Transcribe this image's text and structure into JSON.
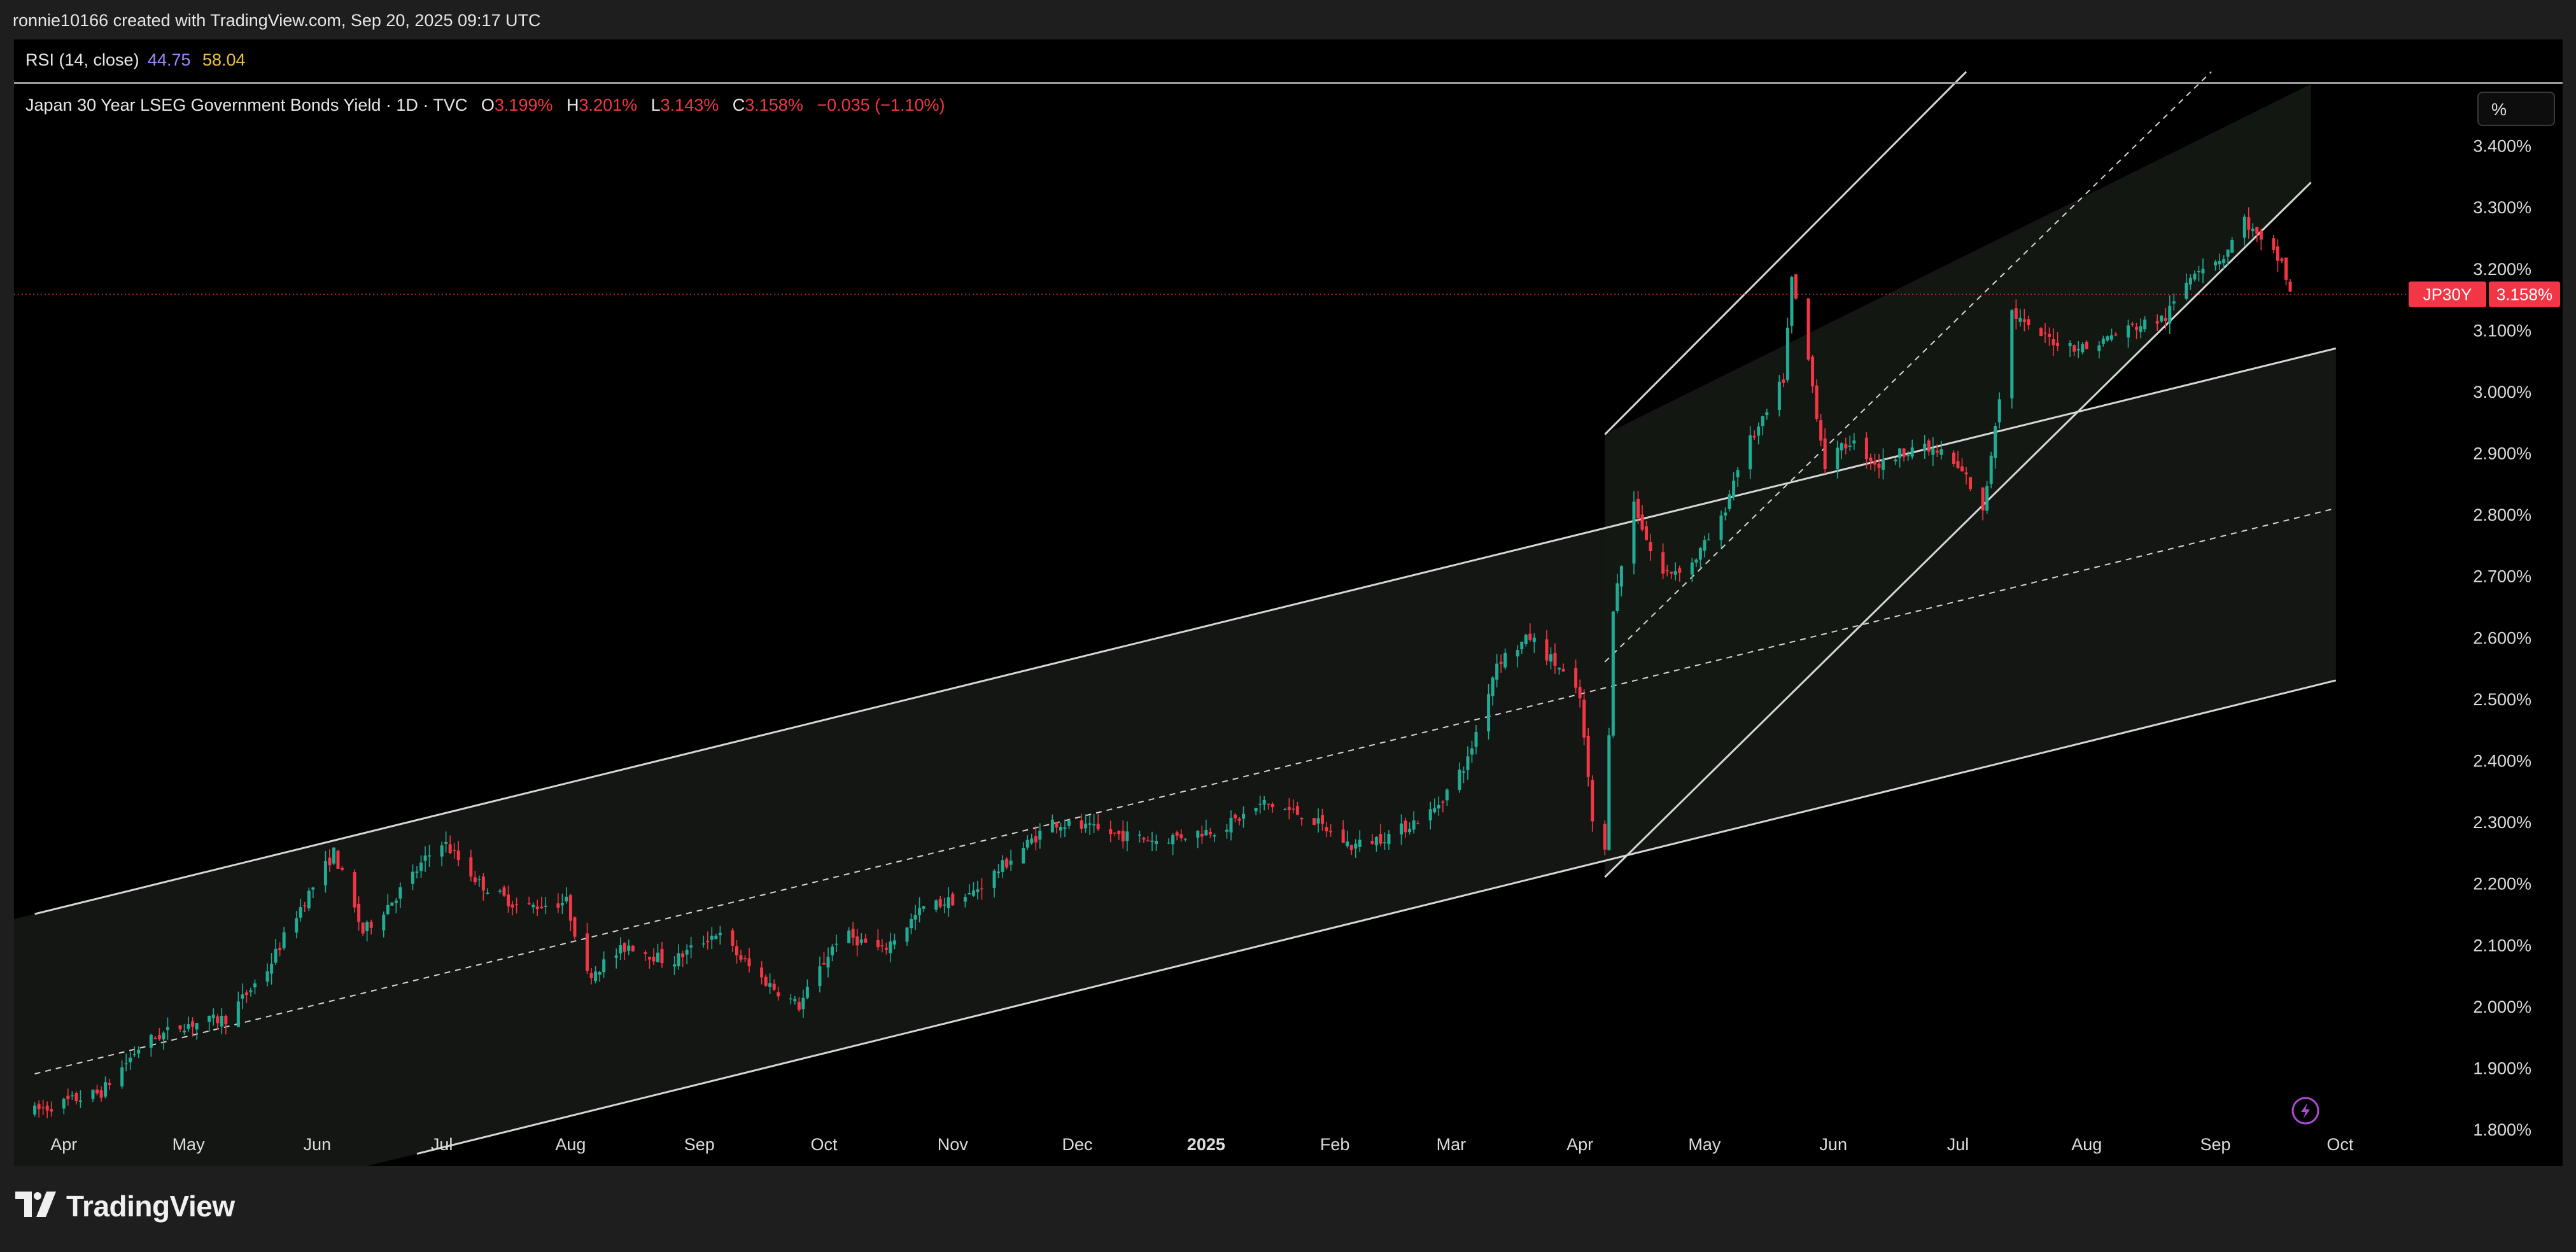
{
  "header": {
    "attribution": "ronnie10166 created with TradingView.com, Sep 20, 2025 09:17 UTC"
  },
  "indicator": {
    "name": "RSI (14, close)",
    "value1": "44.75",
    "value2": "58.04"
  },
  "legend": {
    "symbol_title": "Japan 30 Year LSEG Government Bonds Yield · 1D · TVC",
    "o_label": "O",
    "o_value": "3.199%",
    "h_label": "H",
    "h_value": "3.201%",
    "l_label": "L",
    "l_value": "3.143%",
    "c_label": "C",
    "c_value": "3.158%",
    "change": "−0.035 (−1.10%)"
  },
  "scale_button": {
    "label": "%"
  },
  "price_tag": {
    "symbol": "JP30Y",
    "price": "3.158%"
  },
  "branding": {
    "logo_text": "TradingView",
    "logo_icon": "tradingview-logo-icon",
    "flash_icon": "lightning-icon"
  },
  "colors": {
    "up": "#22ab94",
    "down": "#f23645",
    "background": "#000000",
    "channel_line": "#d6d6d6",
    "rsi_value1": "#9b8cff",
    "rsi_value2": "#f0c33c"
  },
  "chart_data": {
    "type": "candlestick",
    "x_axis": {
      "labels": [
        "Apr",
        "May",
        "Jun",
        "Jul",
        "Aug",
        "Sep",
        "Oct",
        "Nov",
        "Dec",
        "2025",
        "Feb",
        "Mar",
        "Apr",
        "May",
        "Jun",
        "Jul",
        "Aug",
        "Sep",
        "Oct"
      ],
      "dates": [
        "2024-04-01",
        "2024-05-01",
        "2024-06-01",
        "2024-07-01",
        "2024-08-01",
        "2024-09-01",
        "2024-10-01",
        "2024-11-01",
        "2024-12-01",
        "2025-01-01",
        "2025-02-01",
        "2025-03-01",
        "2025-04-01",
        "2025-05-01",
        "2025-06-01",
        "2025-07-01",
        "2025-08-01",
        "2025-09-01",
        "2025-10-01"
      ]
    },
    "y_axis": {
      "ticks": [
        "1.800%",
        "1.900%",
        "2.000%",
        "2.100%",
        "2.200%",
        "2.300%",
        "2.400%",
        "2.500%",
        "2.600%",
        "2.700%",
        "2.800%",
        "2.900%",
        "3.000%",
        "3.100%",
        "3.200%",
        "3.300%",
        "3.400%"
      ],
      "tick_values": [
        1.8,
        1.9,
        2.0,
        2.1,
        2.2,
        2.3,
        2.4,
        2.5,
        2.6,
        2.7,
        2.8,
        2.9,
        3.0,
        3.1,
        3.2,
        3.3,
        3.4
      ],
      "range": [
        1.74,
        3.5
      ],
      "unit": "%"
    },
    "last_price": 3.158,
    "series_path": [
      [
        "2024-03-25",
        1.83
      ],
      [
        "2024-04-10",
        1.86
      ],
      [
        "2024-04-20",
        1.94
      ],
      [
        "2024-04-30",
        1.97
      ],
      [
        "2024-05-10",
        1.98
      ],
      [
        "2024-05-20",
        2.06
      ],
      [
        "2024-05-27",
        2.15
      ],
      [
        "2024-06-05",
        2.25
      ],
      [
        "2024-06-12",
        2.12
      ],
      [
        "2024-06-20",
        2.18
      ],
      [
        "2024-07-01",
        2.27
      ],
      [
        "2024-07-10",
        2.2
      ],
      [
        "2024-07-20",
        2.16
      ],
      [
        "2024-07-31",
        2.17
      ],
      [
        "2024-08-05",
        2.05
      ],
      [
        "2024-08-15",
        2.1
      ],
      [
        "2024-08-25",
        2.07
      ],
      [
        "2024-09-05",
        2.12
      ],
      [
        "2024-09-15",
        2.05
      ],
      [
        "2024-09-25",
        2.0
      ],
      [
        "2024-10-05",
        2.12
      ],
      [
        "2024-10-15",
        2.09
      ],
      [
        "2024-10-25",
        2.16
      ],
      [
        "2024-11-05",
        2.18
      ],
      [
        "2024-11-15",
        2.24
      ],
      [
        "2024-11-25",
        2.3
      ],
      [
        "2024-12-10",
        2.28
      ],
      [
        "2024-12-20",
        2.27
      ],
      [
        "2025-01-05",
        2.29
      ],
      [
        "2025-01-15",
        2.33
      ],
      [
        "2025-01-25",
        2.31
      ],
      [
        "2025-02-05",
        2.26
      ],
      [
        "2025-02-15",
        2.28
      ],
      [
        "2025-02-25",
        2.32
      ],
      [
        "2025-03-05",
        2.4
      ],
      [
        "2025-03-12",
        2.56
      ],
      [
        "2025-03-20",
        2.6
      ],
      [
        "2025-03-27",
        2.55
      ],
      [
        "2025-04-01",
        2.5
      ],
      [
        "2025-04-04",
        2.3
      ],
      [
        "2025-04-07",
        2.25
      ],
      [
        "2025-04-09",
        2.65
      ],
      [
        "2025-04-14",
        2.82
      ],
      [
        "2025-04-20",
        2.7
      ],
      [
        "2025-04-28",
        2.72
      ],
      [
        "2025-05-05",
        2.79
      ],
      [
        "2025-05-10",
        2.9
      ],
      [
        "2025-05-15",
        2.95
      ],
      [
        "2025-05-20",
        3.02
      ],
      [
        "2025-05-22",
        3.18
      ],
      [
        "2025-05-26",
        3.05
      ],
      [
        "2025-05-30",
        2.88
      ],
      [
        "2025-06-05",
        2.92
      ],
      [
        "2025-06-12",
        2.88
      ],
      [
        "2025-06-20",
        2.91
      ],
      [
        "2025-06-27",
        2.9
      ],
      [
        "2025-07-03",
        2.86
      ],
      [
        "2025-07-07",
        2.8
      ],
      [
        "2025-07-10",
        2.95
      ],
      [
        "2025-07-14",
        3.13
      ],
      [
        "2025-07-18",
        3.1
      ],
      [
        "2025-07-25",
        3.08
      ],
      [
        "2025-08-01",
        3.07
      ],
      [
        "2025-08-10",
        3.1
      ],
      [
        "2025-08-20",
        3.12
      ],
      [
        "2025-08-27",
        3.2
      ],
      [
        "2025-09-03",
        3.22
      ],
      [
        "2025-09-08",
        3.28
      ],
      [
        "2025-09-12",
        3.24
      ],
      [
        "2025-09-17",
        3.21
      ],
      [
        "2025-09-19",
        3.158
      ]
    ],
    "channels": [
      {
        "name": "",
        "style": "solid",
        "points": [
          [
            "2024-03-25",
            2.15
          ],
          [
            "2025-09-30",
            3.07
          ]
        ]
      },
      {
        "name": "",
        "style": "dashed",
        "points": [
          [
            "2024-03-25",
            1.89
          ],
          [
            "2025-09-30",
            2.81
          ]
        ]
      },
      {
        "name": "",
        "style": "solid",
        "points": [
          [
            "2024-06-25",
            1.76
          ],
          [
            "2025-09-30",
            2.53
          ]
        ]
      },
      {
        "name": "",
        "style": "solid",
        "points": [
          [
            "2025-04-07",
            2.93
          ],
          [
            "2025-07-03",
            3.52
          ]
        ]
      },
      {
        "name": "",
        "style": "dashed",
        "points": [
          [
            "2025-04-07",
            2.56
          ],
          [
            "2025-08-31",
            3.52
          ]
        ]
      },
      {
        "name": "",
        "style": "solid",
        "points": [
          [
            "2025-04-07",
            2.21
          ],
          [
            "2025-09-24",
            3.34
          ]
        ]
      }
    ]
  }
}
